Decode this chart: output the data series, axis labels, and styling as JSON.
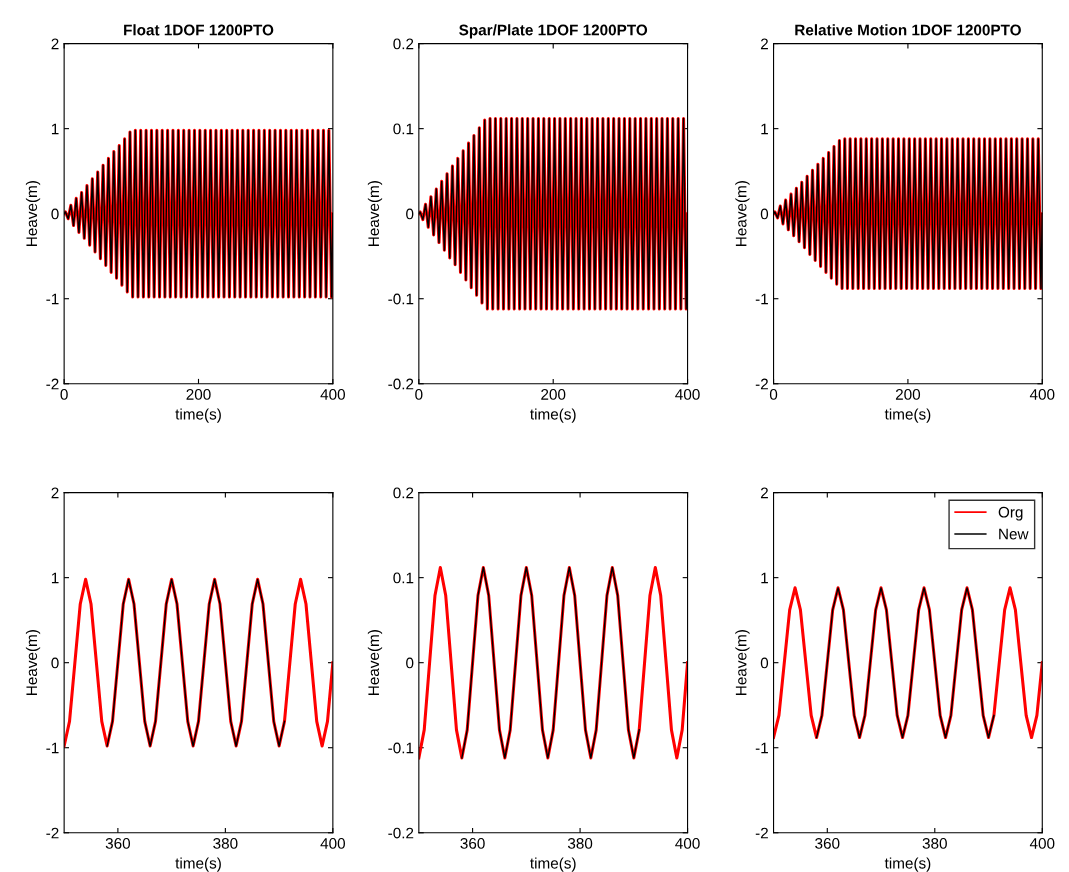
{
  "chart_data": [
    {
      "type": "line",
      "title": "Float 1DOF 1200PTO",
      "xlabel": "time(s)",
      "ylabel": "Heave(m)",
      "xlim": [
        0,
        400
      ],
      "xticks": [
        0,
        200,
        400
      ],
      "ylim": [
        -2,
        2
      ],
      "yticks": [
        -2,
        -1,
        0,
        1,
        2
      ],
      "grid": false,
      "legend": false,
      "x": [
        0,
        2,
        6,
        10,
        14,
        18,
        22,
        26,
        30,
        34,
        38,
        42,
        46,
        50,
        54,
        58,
        62,
        66,
        70,
        74,
        78,
        82,
        86,
        90,
        94,
        98,
        102,
        106,
        110,
        114,
        118,
        122,
        126,
        130,
        134,
        138,
        142,
        146,
        150,
        154,
        158,
        162,
        166,
        170,
        174,
        178,
        182,
        186,
        190,
        194,
        198,
        202,
        206,
        210,
        214,
        218,
        222,
        226,
        230,
        234,
        238,
        242,
        246,
        250,
        254,
        258,
        262,
        266,
        270,
        274,
        278,
        282,
        286,
        290,
        294,
        298,
        302,
        306,
        310,
        314,
        318,
        322,
        326,
        330,
        334,
        338,
        342,
        346,
        350,
        354,
        358,
        362,
        366,
        370,
        374,
        378,
        382,
        386,
        390,
        394,
        398,
        400
      ],
      "series": [
        {
          "color": "#ff0000",
          "values": [
            0,
            0.02,
            -0.06,
            0.1,
            -0.14,
            0.18,
            -0.22,
            0.25,
            -0.29,
            0.33,
            -0.37,
            0.41,
            -0.45,
            0.49,
            -0.53,
            0.57,
            -0.61,
            0.65,
            -0.69,
            0.73,
            -0.76,
            0.8,
            -0.84,
            0.88,
            -0.92,
            0.96,
            -0.98,
            0.98,
            -0.98,
            0.98,
            -0.98,
            0.98,
            -0.98,
            0.98,
            -0.98,
            0.98,
            -0.98,
            0.98,
            -0.98,
            0.98,
            -0.98,
            0.98,
            -0.98,
            0.98,
            -0.98,
            0.98,
            -0.98,
            0.98,
            -0.98,
            0.98,
            -0.98,
            0.98,
            -0.98,
            0.98,
            -0.98,
            0.98,
            -0.98,
            0.98,
            -0.98,
            0.98,
            -0.98,
            0.98,
            -0.98,
            0.98,
            -0.98,
            0.98,
            -0.98,
            0.98,
            -0.98,
            0.98,
            -0.98,
            0.98,
            -0.98,
            0.98,
            -0.98,
            0.98,
            -0.98,
            0.98,
            -0.98,
            0.98,
            -0.98,
            0.98,
            -0.98,
            0.98,
            -0.98,
            0.98,
            -0.98,
            0.98,
            -0.98,
            0.98,
            -0.98,
            0.98,
            -0.98,
            0.98,
            -0.98,
            0.98,
            -0.98,
            0.98,
            -0.98,
            0.98,
            -0.98,
            0
          ]
        },
        {
          "color": "#000000",
          "values": [
            0,
            0.02,
            -0.06,
            0.1,
            -0.14,
            0.18,
            -0.22,
            0.25,
            -0.29,
            0.33,
            -0.37,
            0.41,
            -0.45,
            0.49,
            -0.53,
            0.57,
            -0.61,
            0.65,
            -0.69,
            0.73,
            -0.76,
            0.8,
            -0.84,
            0.88,
            -0.92,
            0.96,
            -0.98,
            0.98,
            -0.98,
            0.98,
            -0.98,
            0.98,
            -0.98,
            0.98,
            -0.98,
            0.98,
            -0.98,
            0.98,
            -0.98,
            0.98,
            -0.98,
            0.98,
            -0.98,
            0.98,
            -0.98,
            0.98,
            -0.98,
            0.98,
            -0.98,
            0.98,
            -0.98,
            0.98,
            -0.98,
            0.98,
            -0.98,
            0.98,
            -0.98,
            0.98,
            -0.98,
            0.98,
            -0.98,
            0.98,
            -0.98,
            0.98,
            -0.98,
            0.98,
            -0.98,
            0.98,
            -0.98,
            0.98,
            -0.98,
            0.98,
            -0.98,
            0.98,
            -0.98,
            0.98,
            -0.98,
            0.98,
            -0.98,
            0.98,
            -0.98,
            0.98,
            -0.98,
            0.98,
            -0.98,
            0.98,
            -0.98,
            0.98,
            -0.98,
            0.98,
            -0.98,
            0.98,
            -0.98,
            0.98,
            -0.98,
            0.98,
            -0.98,
            0.98,
            -0.98,
            0.98,
            -0.98,
            0
          ]
        }
      ]
    },
    {
      "type": "line",
      "title": "Spar/Plate 1DOF 1200PTO",
      "xlabel": "time(s)",
      "ylabel": "Heave(m)",
      "xlim": [
        0,
        400
      ],
      "xticks": [
        0,
        200,
        400
      ],
      "ylim": [
        -0.2,
        0.2
      ],
      "yticks": [
        -0.2,
        -0.1,
        0,
        0.1,
        0.2
      ],
      "grid": false,
      "legend": false,
      "x": [
        0,
        2,
        6,
        10,
        14,
        18,
        22,
        26,
        30,
        34,
        38,
        42,
        46,
        50,
        54,
        58,
        62,
        66,
        70,
        74,
        78,
        82,
        86,
        90,
        94,
        98,
        102,
        106,
        110,
        114,
        118,
        122,
        126,
        130,
        134,
        138,
        142,
        146,
        150,
        154,
        158,
        162,
        166,
        170,
        174,
        178,
        182,
        186,
        190,
        194,
        198,
        202,
        206,
        210,
        214,
        218,
        222,
        226,
        230,
        234,
        238,
        242,
        246,
        250,
        254,
        258,
        262,
        266,
        270,
        274,
        278,
        282,
        286,
        290,
        294,
        298,
        302,
        306,
        310,
        314,
        318,
        322,
        326,
        330,
        334,
        338,
        342,
        346,
        350,
        354,
        358,
        362,
        366,
        370,
        374,
        378,
        382,
        386,
        390,
        394,
        398,
        400
      ],
      "series": [
        {
          "color": "#ff0000",
          "values": [
            0,
            0.002,
            -0.007,
            0.011,
            -0.016,
            0.02,
            -0.025,
            0.029,
            -0.034,
            0.038,
            -0.043,
            0.047,
            -0.052,
            0.056,
            -0.06,
            0.065,
            -0.069,
            0.074,
            -0.078,
            0.083,
            -0.087,
            0.092,
            -0.096,
            0.101,
            -0.105,
            0.11,
            -0.112,
            0.112,
            -0.112,
            0.112,
            -0.112,
            0.112,
            -0.112,
            0.112,
            -0.112,
            0.112,
            -0.112,
            0.112,
            -0.112,
            0.112,
            -0.112,
            0.112,
            -0.112,
            0.112,
            -0.112,
            0.112,
            -0.112,
            0.112,
            -0.112,
            0.112,
            -0.112,
            0.112,
            -0.112,
            0.112,
            -0.112,
            0.112,
            -0.112,
            0.112,
            -0.112,
            0.112,
            -0.112,
            0.112,
            -0.112,
            0.112,
            -0.112,
            0.112,
            -0.112,
            0.112,
            -0.112,
            0.112,
            -0.112,
            0.112,
            -0.112,
            0.112,
            -0.112,
            0.112,
            -0.112,
            0.112,
            -0.112,
            0.112,
            -0.112,
            0.112,
            -0.112,
            0.112,
            -0.112,
            0.112,
            -0.112,
            0.112,
            -0.112,
            0.112,
            -0.112,
            0.112,
            -0.112,
            0.112,
            -0.112,
            0.112,
            -0.112,
            0.112,
            -0.112,
            0.112,
            -0.112,
            0
          ]
        },
        {
          "color": "#000000",
          "values": [
            0,
            0.002,
            -0.007,
            0.011,
            -0.016,
            0.02,
            -0.025,
            0.029,
            -0.034,
            0.038,
            -0.043,
            0.047,
            -0.052,
            0.056,
            -0.06,
            0.065,
            -0.069,
            0.074,
            -0.078,
            0.083,
            -0.087,
            0.092,
            -0.096,
            0.101,
            -0.105,
            0.11,
            -0.112,
            0.112,
            -0.112,
            0.112,
            -0.112,
            0.112,
            -0.112,
            0.112,
            -0.112,
            0.112,
            -0.112,
            0.112,
            -0.112,
            0.112,
            -0.112,
            0.112,
            -0.112,
            0.112,
            -0.112,
            0.112,
            -0.112,
            0.112,
            -0.112,
            0.112,
            -0.112,
            0.112,
            -0.112,
            0.112,
            -0.112,
            0.112,
            -0.112,
            0.112,
            -0.112,
            0.112,
            -0.112,
            0.112,
            -0.112,
            0.112,
            -0.112,
            0.112,
            -0.112,
            0.112,
            -0.112,
            0.112,
            -0.112,
            0.112,
            -0.112,
            0.112,
            -0.112,
            0.112,
            -0.112,
            0.112,
            -0.112,
            0.112,
            -0.112,
            0.112,
            -0.112,
            0.112,
            -0.112,
            0.112,
            -0.112,
            0.112,
            -0.112,
            0.112,
            -0.112,
            0.112,
            -0.112,
            0.112,
            -0.112,
            0.112,
            -0.112,
            0.112,
            -0.112,
            0.112,
            -0.112,
            0
          ]
        }
      ]
    },
    {
      "type": "line",
      "title": "Relative Motion 1DOF 1200PTO",
      "xlabel": "time(s)",
      "ylabel": "Heave(m)",
      "xlim": [
        0,
        400
      ],
      "xticks": [
        0,
        200,
        400
      ],
      "ylim": [
        -2,
        2
      ],
      "yticks": [
        -2,
        -1,
        0,
        1,
        2
      ],
      "grid": false,
      "legend": false,
      "x": [
        0,
        2,
        6,
        10,
        14,
        18,
        22,
        26,
        30,
        34,
        38,
        42,
        46,
        50,
        54,
        58,
        62,
        66,
        70,
        74,
        78,
        82,
        86,
        90,
        94,
        98,
        102,
        106,
        110,
        114,
        118,
        122,
        126,
        130,
        134,
        138,
        142,
        146,
        150,
        154,
        158,
        162,
        166,
        170,
        174,
        178,
        182,
        186,
        190,
        194,
        198,
        202,
        206,
        210,
        214,
        218,
        222,
        226,
        230,
        234,
        238,
        242,
        246,
        250,
        254,
        258,
        262,
        266,
        270,
        274,
        278,
        282,
        286,
        290,
        294,
        298,
        302,
        306,
        310,
        314,
        318,
        322,
        326,
        330,
        334,
        338,
        342,
        346,
        350,
        354,
        358,
        362,
        366,
        370,
        374,
        378,
        382,
        386,
        390,
        394,
        398,
        400
      ],
      "series": [
        {
          "color": "#ff0000",
          "values": [
            0,
            0.02,
            -0.05,
            0.09,
            -0.12,
            0.16,
            -0.19,
            0.23,
            -0.26,
            0.3,
            -0.33,
            0.37,
            -0.4,
            0.44,
            -0.48,
            0.51,
            -0.55,
            0.58,
            -0.62,
            0.65,
            -0.69,
            0.72,
            -0.76,
            0.79,
            -0.83,
            0.86,
            -0.88,
            0.88,
            -0.88,
            0.88,
            -0.88,
            0.88,
            -0.88,
            0.88,
            -0.88,
            0.88,
            -0.88,
            0.88,
            -0.88,
            0.88,
            -0.88,
            0.88,
            -0.88,
            0.88,
            -0.88,
            0.88,
            -0.88,
            0.88,
            -0.88,
            0.88,
            -0.88,
            0.88,
            -0.88,
            0.88,
            -0.88,
            0.88,
            -0.88,
            0.88,
            -0.88,
            0.88,
            -0.88,
            0.88,
            -0.88,
            0.88,
            -0.88,
            0.88,
            -0.88,
            0.88,
            -0.88,
            0.88,
            -0.88,
            0.88,
            -0.88,
            0.88,
            -0.88,
            0.88,
            -0.88,
            0.88,
            -0.88,
            0.88,
            -0.88,
            0.88,
            -0.88,
            0.88,
            -0.88,
            0.88,
            -0.88,
            0.88,
            -0.88,
            0.88,
            -0.88,
            0.88,
            -0.88,
            0.88,
            -0.88,
            0.88,
            -0.88,
            0.88,
            -0.88,
            0.88,
            -0.88,
            0
          ]
        },
        {
          "color": "#000000",
          "values": [
            0,
            0.02,
            -0.05,
            0.09,
            -0.12,
            0.16,
            -0.19,
            0.23,
            -0.26,
            0.3,
            -0.33,
            0.37,
            -0.4,
            0.44,
            -0.48,
            0.51,
            -0.55,
            0.58,
            -0.62,
            0.65,
            -0.69,
            0.72,
            -0.76,
            0.79,
            -0.83,
            0.86,
            -0.88,
            0.88,
            -0.88,
            0.88,
            -0.88,
            0.88,
            -0.88,
            0.88,
            -0.88,
            0.88,
            -0.88,
            0.88,
            -0.88,
            0.88,
            -0.88,
            0.88,
            -0.88,
            0.88,
            -0.88,
            0.88,
            -0.88,
            0.88,
            -0.88,
            0.88,
            -0.88,
            0.88,
            -0.88,
            0.88,
            -0.88,
            0.88,
            -0.88,
            0.88,
            -0.88,
            0.88,
            -0.88,
            0.88,
            -0.88,
            0.88,
            -0.88,
            0.88,
            -0.88,
            0.88,
            -0.88,
            0.88,
            -0.88,
            0.88,
            -0.88,
            0.88,
            -0.88,
            0.88,
            -0.88,
            0.88,
            -0.88,
            0.88,
            -0.88,
            0.88,
            -0.88,
            0.88,
            -0.88,
            0.88,
            -0.88,
            0.88,
            -0.88,
            0.88,
            -0.88,
            0.88,
            -0.88,
            0.88,
            -0.88,
            0.88,
            -0.88,
            0.88,
            -0.88,
            0.88,
            -0.88,
            0
          ]
        }
      ]
    },
    {
      "type": "line",
      "xlabel": "time(s)",
      "ylabel": "Heave(m)",
      "xlim": [
        350,
        400
      ],
      "xticks": [
        360,
        380,
        400
      ],
      "ylim": [
        -2,
        2
      ],
      "yticks": [
        -2,
        -1,
        0,
        1,
        2
      ],
      "grid": false,
      "legend": false,
      "x": [
        350,
        351,
        352,
        353,
        354,
        355,
        356,
        357,
        358,
        359,
        360,
        361,
        362,
        363,
        364,
        365,
        366,
        367,
        368,
        369,
        370,
        371,
        372,
        373,
        374,
        375,
        376,
        377,
        378,
        379,
        380,
        381,
        382,
        383,
        384,
        385,
        386,
        387,
        388,
        389,
        390,
        391,
        392,
        393,
        394,
        395,
        396,
        397,
        398,
        399,
        400
      ],
      "series": [
        {
          "color": "#ff0000",
          "values": [
            -0.98,
            -0.69,
            0,
            0.69,
            0.98,
            0.69,
            0,
            -0.69,
            -0.98,
            -0.69,
            0,
            0.69,
            0.98,
            0.69,
            0,
            -0.69,
            -0.98,
            -0.69,
            0,
            0.69,
            0.98,
            0.69,
            0,
            -0.69,
            -0.98,
            -0.69,
            0,
            0.69,
            0.98,
            0.69,
            0,
            -0.69,
            -0.98,
            -0.69,
            0,
            0.69,
            0.98,
            0.69,
            0,
            -0.69,
            -0.98,
            -0.69,
            0,
            0.69,
            0.98,
            0.69,
            0,
            -0.69,
            -0.98,
            -0.69,
            0
          ]
        },
        {
          "color": "#000000",
          "values": [
            null,
            null,
            null,
            null,
            null,
            null,
            null,
            null,
            -0.98,
            -0.69,
            0,
            0.69,
            0.98,
            0.69,
            0,
            -0.69,
            -0.98,
            -0.69,
            0,
            0.69,
            0.98,
            0.69,
            0,
            -0.69,
            -0.98,
            -0.69,
            0,
            0.69,
            0.98,
            0.69,
            0,
            -0.69,
            -0.98,
            -0.69,
            0,
            0.69,
            0.98,
            0.69,
            0,
            -0.69,
            -0.98,
            -0.69,
            null,
            null,
            null,
            null,
            null,
            null,
            null,
            null,
            null
          ]
        }
      ]
    },
    {
      "type": "line",
      "xlabel": "time(s)",
      "ylabel": "Heave(m)",
      "xlim": [
        350,
        400
      ],
      "xticks": [
        360,
        380,
        400
      ],
      "ylim": [
        -0.2,
        0.2
      ],
      "yticks": [
        -0.2,
        -0.1,
        0,
        0.1,
        0.2
      ],
      "grid": false,
      "legend": false,
      "x": [
        350,
        351,
        352,
        353,
        354,
        355,
        356,
        357,
        358,
        359,
        360,
        361,
        362,
        363,
        364,
        365,
        366,
        367,
        368,
        369,
        370,
        371,
        372,
        373,
        374,
        375,
        376,
        377,
        378,
        379,
        380,
        381,
        382,
        383,
        384,
        385,
        386,
        387,
        388,
        389,
        390,
        391,
        392,
        393,
        394,
        395,
        396,
        397,
        398,
        399,
        400
      ],
      "series": [
        {
          "color": "#ff0000",
          "values": [
            -0.112,
            -0.079,
            0,
            0.079,
            0.112,
            0.079,
            0,
            -0.079,
            -0.112,
            -0.079,
            0,
            0.079,
            0.112,
            0.079,
            0,
            -0.079,
            -0.112,
            -0.079,
            0,
            0.079,
            0.112,
            0.079,
            0,
            -0.079,
            -0.112,
            -0.079,
            0,
            0.079,
            0.112,
            0.079,
            0,
            -0.079,
            -0.112,
            -0.079,
            0,
            0.079,
            0.112,
            0.079,
            0,
            -0.079,
            -0.112,
            -0.079,
            0,
            0.079,
            0.112,
            0.079,
            0,
            -0.079,
            -0.112,
            -0.079,
            0
          ]
        },
        {
          "color": "#000000",
          "values": [
            null,
            null,
            null,
            null,
            null,
            null,
            null,
            null,
            -0.112,
            -0.079,
            0,
            0.079,
            0.112,
            0.079,
            0,
            -0.079,
            -0.112,
            -0.079,
            0,
            0.079,
            0.112,
            0.079,
            0,
            -0.079,
            -0.112,
            -0.079,
            0,
            0.079,
            0.112,
            0.079,
            0,
            -0.079,
            -0.112,
            -0.079,
            0,
            0.079,
            0.112,
            0.079,
            0,
            -0.079,
            -0.112,
            -0.079,
            null,
            null,
            null,
            null,
            null,
            null,
            null,
            null,
            null
          ]
        }
      ]
    },
    {
      "type": "line",
      "xlabel": "time(s)",
      "ylabel": "Heave(m)",
      "xlim": [
        350,
        400
      ],
      "xticks": [
        360,
        380,
        400
      ],
      "ylim": [
        -2,
        2
      ],
      "yticks": [
        -2,
        -1,
        0,
        1,
        2
      ],
      "grid": false,
      "legend": "top right",
      "x": [
        350,
        351,
        352,
        353,
        354,
        355,
        356,
        357,
        358,
        359,
        360,
        361,
        362,
        363,
        364,
        365,
        366,
        367,
        368,
        369,
        370,
        371,
        372,
        373,
        374,
        375,
        376,
        377,
        378,
        379,
        380,
        381,
        382,
        383,
        384,
        385,
        386,
        387,
        388,
        389,
        390,
        391,
        392,
        393,
        394,
        395,
        396,
        397,
        398,
        399,
        400
      ],
      "series": [
        {
          "name": "Org",
          "color": "#ff0000",
          "values": [
            -0.88,
            -0.62,
            0,
            0.62,
            0.88,
            0.62,
            0,
            -0.62,
            -0.88,
            -0.62,
            0,
            0.62,
            0.88,
            0.62,
            0,
            -0.62,
            -0.88,
            -0.62,
            0,
            0.62,
            0.88,
            0.62,
            0,
            -0.62,
            -0.88,
            -0.62,
            0,
            0.62,
            0.88,
            0.62,
            0,
            -0.62,
            -0.88,
            -0.62,
            0,
            0.62,
            0.88,
            0.62,
            0,
            -0.62,
            -0.88,
            -0.62,
            0,
            0.62,
            0.88,
            0.62,
            0,
            -0.62,
            -0.88,
            -0.62,
            0
          ]
        },
        {
          "name": "New",
          "color": "#000000",
          "values": [
            null,
            null,
            null,
            null,
            null,
            null,
            null,
            null,
            -0.88,
            -0.62,
            0,
            0.62,
            0.88,
            0.62,
            0,
            -0.62,
            -0.88,
            -0.62,
            0,
            0.62,
            0.88,
            0.62,
            0,
            -0.62,
            -0.88,
            -0.62,
            0,
            0.62,
            0.88,
            0.62,
            0,
            -0.62,
            -0.88,
            -0.62,
            0,
            0.62,
            0.88,
            0.62,
            0,
            -0.62,
            -0.88,
            -0.62,
            null,
            null,
            null,
            null,
            null,
            null,
            null,
            null,
            null
          ]
        }
      ]
    }
  ]
}
